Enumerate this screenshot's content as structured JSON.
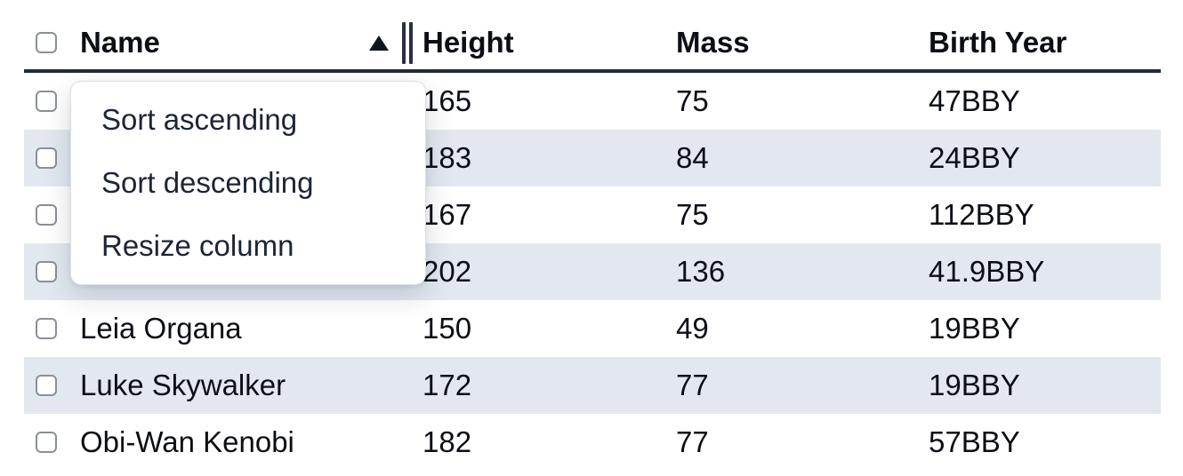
{
  "table": {
    "columns": [
      {
        "key": "name",
        "label": "Name"
      },
      {
        "key": "height",
        "label": "Height"
      },
      {
        "key": "mass",
        "label": "Mass"
      },
      {
        "key": "birth_year",
        "label": "Birth Year"
      }
    ],
    "sort": {
      "column": "Name",
      "direction": "ascending"
    },
    "rows": [
      {
        "name": "",
        "height": "165",
        "mass": "75",
        "birth_year": "47BBY",
        "occluded_by_menu": true
      },
      {
        "name": "",
        "height": "183",
        "mass": "84",
        "birth_year": "24BBY",
        "occluded_by_menu": true
      },
      {
        "name": "",
        "height": "167",
        "mass": "75",
        "birth_year": "112BBY",
        "occluded_by_menu": true
      },
      {
        "name": "",
        "height": "202",
        "mass": "136",
        "birth_year": "41.9BBY",
        "occluded_by_menu": true
      },
      {
        "name": "Leia Organa",
        "height": "150",
        "mass": "49",
        "birth_year": "19BBY",
        "occluded_by_menu": false
      },
      {
        "name": "Luke Skywalker",
        "height": "172",
        "mass": "77",
        "birth_year": "19BBY",
        "occluded_by_menu": false
      },
      {
        "name": "Obi-Wan Kenobi",
        "height": "182",
        "mass": "77",
        "birth_year": "57BBY",
        "occluded_by_menu": false
      }
    ]
  },
  "context_menu": {
    "items": [
      {
        "label": "Sort ascending"
      },
      {
        "label": "Sort descending"
      },
      {
        "label": "Resize column"
      }
    ]
  },
  "icons": {
    "sort_ascending": "filled-up-triangle",
    "column_resize": "double-vertical-bars",
    "row_select": "empty-checkbox"
  },
  "colors": {
    "row_stripe": "#e3e8f0",
    "header_border": "#222b3c",
    "text": "#0b0e14",
    "menu_text": "#1c2536",
    "checkbox_border": "#8a9099",
    "menu_border": "#dcdfe6"
  }
}
